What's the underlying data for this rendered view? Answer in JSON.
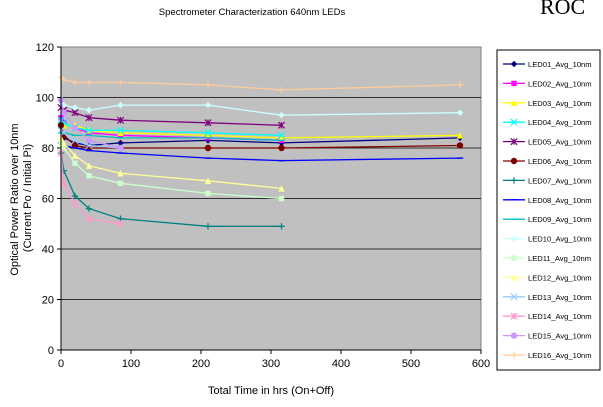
{
  "corner_text": "ROC",
  "chart_data": {
    "type": "line",
    "title": "Spectrometer Characterization 640nm LEDs",
    "xlabel": "Total Time in hrs (On+Off)",
    "ylabel_lines": [
      "Optical Power Ratio over 10nm",
      "(Current Po / Initial Pi)"
    ],
    "xlim": [
      0,
      600
    ],
    "ylim": [
      0,
      120
    ],
    "xticks": [
      0,
      100,
      200,
      300,
      400,
      500,
      600
    ],
    "yticks": [
      0,
      20,
      40,
      60,
      80,
      100,
      120
    ],
    "grid": "horizontal",
    "plot_background": "#c0c0c0",
    "legend_position": "right",
    "series": [
      {
        "name": "LED01_Avg_10nm",
        "color": "#000080",
        "marker": "diamond",
        "x": [
          0,
          4,
          20,
          40,
          85,
          210,
          315,
          570
        ],
        "y": [
          88,
          84,
          82,
          81,
          82,
          83,
          82,
          84
        ]
      },
      {
        "name": "LED02_Avg_10nm",
        "color": "#ff00ff",
        "marker": "square",
        "x": [
          0,
          4,
          20,
          40,
          85,
          210,
          315
        ],
        "y": [
          92,
          90,
          88,
          86,
          85,
          84,
          83
        ]
      },
      {
        "name": "LED03_Avg_10nm",
        "color": "#ffff00",
        "marker": "triangle",
        "x": [
          0,
          4,
          20,
          40,
          85,
          210,
          315,
          570
        ],
        "y": [
          90,
          89,
          89,
          87,
          86,
          85,
          84,
          85
        ]
      },
      {
        "name": "LED04_Avg_10nm",
        "color": "#00ffff",
        "marker": "x",
        "x": [
          0,
          4,
          20,
          40,
          85,
          210,
          315
        ],
        "y": [
          91,
          90,
          88,
          87,
          87,
          86,
          85
        ]
      },
      {
        "name": "LED05_Avg_10nm",
        "color": "#800080",
        "marker": "star",
        "x": [
          0,
          4,
          20,
          40,
          85,
          210,
          315
        ],
        "y": [
          96,
          95,
          94,
          92,
          91,
          90,
          89
        ]
      },
      {
        "name": "LED06_Avg_10nm",
        "color": "#800000",
        "marker": "circle",
        "x": [
          0,
          4,
          20,
          40,
          85,
          210,
          315,
          570
        ],
        "y": [
          89,
          85,
          81,
          80,
          80,
          80,
          80,
          81
        ]
      },
      {
        "name": "LED07_Avg_10nm",
        "color": "#008080",
        "marker": "plus",
        "x": [
          0,
          4,
          20,
          40,
          85,
          210,
          315
        ],
        "y": [
          78,
          71,
          61,
          56,
          52,
          49,
          49
        ]
      },
      {
        "name": "LED08_Avg_10nm",
        "color": "#0000ff",
        "marker": "dash",
        "x": [
          0,
          4,
          20,
          40,
          85,
          210,
          315,
          570
        ],
        "y": [
          82,
          81,
          80,
          79,
          78,
          76,
          75,
          76
        ]
      },
      {
        "name": "LED09_Avg_10nm",
        "color": "#00c0c0",
        "marker": "dash",
        "x": [
          0,
          4,
          20,
          40,
          85,
          210,
          315
        ],
        "y": [
          86,
          86,
          85,
          85,
          84,
          84,
          83
        ]
      },
      {
        "name": "LED10_Avg_10nm",
        "color": "#ccffff",
        "marker": "diamond",
        "x": [
          0,
          4,
          20,
          40,
          85,
          210,
          315,
          570
        ],
        "y": [
          98,
          97,
          96,
          95,
          97,
          97,
          93,
          94
        ]
      },
      {
        "name": "LED11_Avg_10nm",
        "color": "#ccffcc",
        "marker": "square",
        "x": [
          0,
          4,
          20,
          40,
          85,
          210,
          315
        ],
        "y": [
          82,
          80,
          74,
          69,
          66,
          62,
          60
        ]
      },
      {
        "name": "LED12_Avg_10nm",
        "color": "#ffff99",
        "marker": "triangle",
        "x": [
          0,
          4,
          20,
          40,
          85,
          210,
          315
        ],
        "y": [
          84,
          82,
          77,
          73,
          70,
          67,
          64
        ]
      },
      {
        "name": "LED13_Avg_10nm",
        "color": "#99ccff",
        "marker": "x",
        "x": [
          0,
          4,
          20,
          40,
          85
        ],
        "y": [
          87,
          86,
          83,
          81,
          80
        ]
      },
      {
        "name": "LED14_Avg_10nm",
        "color": "#ff99cc",
        "marker": "star",
        "x": [
          0,
          4,
          20,
          40,
          85
        ],
        "y": [
          78,
          66,
          58,
          52,
          50
        ]
      },
      {
        "name": "LED15_Avg_10nm",
        "color": "#cc99ff",
        "marker": "circle",
        "x": [
          0,
          4,
          20,
          40,
          85
        ],
        "y": [
          99,
          94,
          88,
          83,
          80
        ]
      },
      {
        "name": "LED16_Avg_10nm",
        "color": "#ffcc99",
        "marker": "plus",
        "x": [
          0,
          4,
          20,
          40,
          85,
          210,
          315,
          570
        ],
        "y": [
          108,
          107,
          106,
          106,
          106,
          105,
          103,
          105
        ]
      }
    ]
  }
}
